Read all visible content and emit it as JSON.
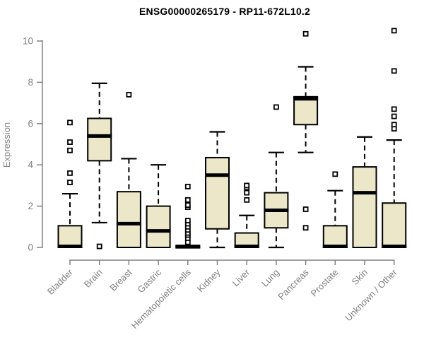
{
  "chart_data": {
    "type": "boxplot",
    "title": "ENSG00000265179 - RP11-672L10.2",
    "xlabel": "",
    "ylabel": "Expression",
    "ylim": [
      0,
      10
    ],
    "yticks": [
      0,
      2,
      4,
      6,
      8,
      10
    ],
    "grid": false,
    "legend": "none",
    "categories": [
      "Bladder",
      "Brain",
      "Breast",
      "Gastric",
      "Hematopoietic cells",
      "Kidney",
      "Liver",
      "Lung",
      "Pancreas",
      "Prostate",
      "Skin",
      "Unknown / Other"
    ],
    "boxes": [
      {
        "category": "Bladder",
        "whisker_low": 0,
        "q1": 0,
        "median": 0.05,
        "q3": 1.05,
        "whisker_high": 2.6,
        "outliers": [
          3.15,
          3.6,
          4.7,
          5.1,
          6.05
        ]
      },
      {
        "category": "Brain",
        "whisker_low": 1.2,
        "q1": 4.2,
        "median": 5.4,
        "q3": 6.25,
        "whisker_high": 7.95,
        "outliers": [
          0.05
        ]
      },
      {
        "category": "Breast",
        "whisker_low": 0,
        "q1": 0,
        "median": 1.15,
        "q3": 2.7,
        "whisker_high": 4.3,
        "outliers": [
          7.4
        ]
      },
      {
        "category": "Gastric",
        "whisker_low": 0,
        "q1": 0,
        "median": 0.8,
        "q3": 2.0,
        "whisker_high": 4.0,
        "outliers": []
      },
      {
        "category": "Hematopoietic cells",
        "whisker_low": 0,
        "q1": 0,
        "median": 0.03,
        "q3": 0.1,
        "whisker_high": 0.1,
        "outliers": [
          0.25,
          0.45,
          0.6,
          0.7,
          0.85,
          1.0,
          1.15,
          1.3,
          1.95,
          2.05,
          2.3,
          2.95
        ]
      },
      {
        "category": "Kidney",
        "whisker_low": 0,
        "q1": 0.9,
        "median": 3.5,
        "q3": 4.35,
        "whisker_high": 5.6,
        "outliers": []
      },
      {
        "category": "Liver",
        "whisker_low": 0,
        "q1": 0,
        "median": 0.05,
        "q3": 0.7,
        "whisker_high": 1.55,
        "outliers": [
          2.3,
          2.65,
          2.9,
          3.0
        ]
      },
      {
        "category": "Lung",
        "whisker_low": 0,
        "q1": 0.95,
        "median": 1.8,
        "q3": 2.65,
        "whisker_high": 4.6,
        "outliers": [
          6.8
        ]
      },
      {
        "category": "Pancreas",
        "whisker_low": 4.6,
        "q1": 5.95,
        "median": 7.2,
        "q3": 7.3,
        "whisker_high": 8.75,
        "outliers": [
          0.95,
          1.85,
          10.35
        ]
      },
      {
        "category": "Prostate",
        "whisker_low": 0,
        "q1": 0,
        "median": 0.05,
        "q3": 1.05,
        "whisker_high": 2.75,
        "outliers": [
          3.55
        ]
      },
      {
        "category": "Skin",
        "whisker_low": 0,
        "q1": 0,
        "median": 2.65,
        "q3": 3.9,
        "whisker_high": 5.35,
        "outliers": []
      },
      {
        "category": "Unknown / Other",
        "whisker_low": 0,
        "q1": 0,
        "median": 0.05,
        "q3": 2.15,
        "whisker_high": 5.2,
        "outliers": [
          5.75,
          5.95,
          6.35,
          6.7,
          8.55,
          10.5
        ]
      }
    ],
    "colors": {
      "box_fill": "#ede7c9",
      "box_stroke": "#000000",
      "axis": "#808080",
      "tick_label": "#808080",
      "title": "#000000",
      "background": "#ffffff"
    }
  }
}
